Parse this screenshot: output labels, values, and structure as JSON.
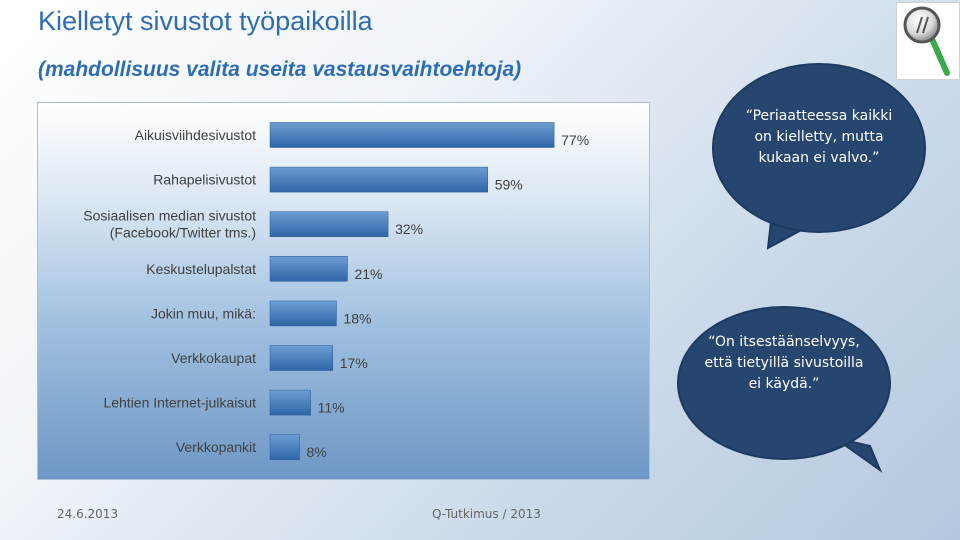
{
  "slide": {
    "title": "Kielletyt sivustot työpaikoilla",
    "subtitle": "(mahdollisuus valita useita vastausvaihtoehtoja)"
  },
  "chart_data": {
    "type": "bar",
    "orientation": "horizontal",
    "categories": [
      [
        "Aikuisviihdesivustot"
      ],
      [
        "Rahapelisivustot"
      ],
      [
        "Sosiaalisen median sivustot",
        "(Facebook/Twitter tms.)"
      ],
      [
        "Keskustelupalstat"
      ],
      [
        "Jokin muu, mikä:"
      ],
      [
        "Verkkokaupat"
      ],
      [
        "Lehtien Internet-julkaisut"
      ],
      [
        "Verkkopankit"
      ]
    ],
    "values": [
      77,
      59,
      32,
      21,
      18,
      17,
      11,
      8
    ],
    "value_labels": [
      "77%",
      "59%",
      "32%",
      "21%",
      "18%",
      "17%",
      "11%",
      "8%"
    ],
    "unit": "%",
    "bar_color": "#3f77b7",
    "xlim": [
      0,
      100
    ],
    "grid": false,
    "legend": "none"
  },
  "callouts": {
    "top": "“Periaatteessa kaikki on kielletty, mutta kukaan ei valvo.”",
    "bottom": "“On itsestäänselvyys, että tietyillä sivustoilla ei käydä.”"
  },
  "logo": {
    "icon": "magnifier-icon"
  },
  "footer": {
    "date": "24.6.2013",
    "source": "Q-Tutkimus / 2013"
  }
}
